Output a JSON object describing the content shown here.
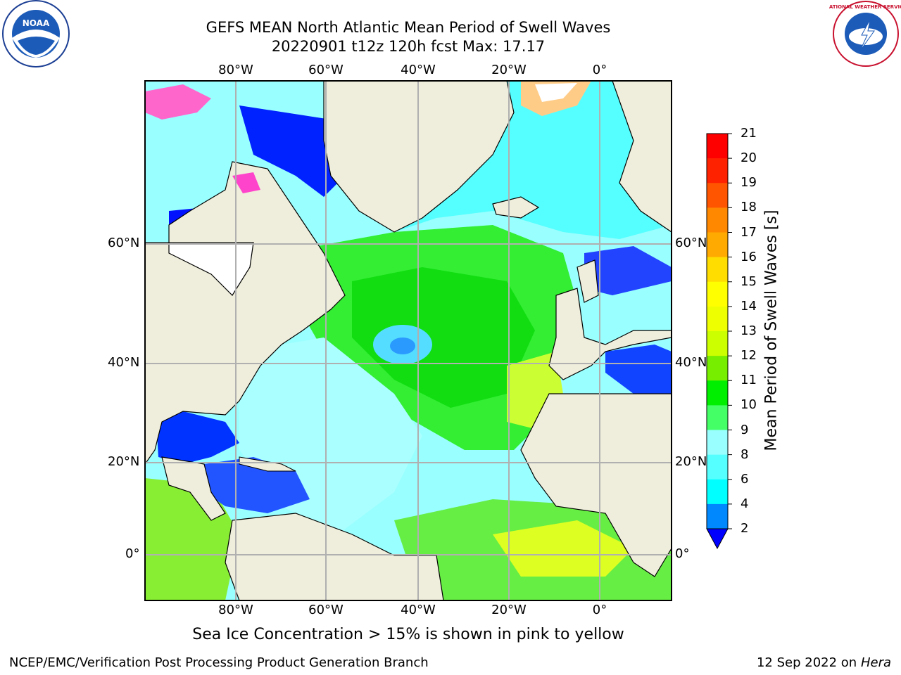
{
  "header": {
    "title_line1": "GEFS MEAN North Atlantic Mean Period of Swell Waves",
    "title_line2": "20220901 t12z 120h fcst   Max: 17.17"
  },
  "map": {
    "lon_labels": [
      "80°W",
      "60°W",
      "40°W",
      "20°W",
      "0°"
    ],
    "lat_labels_left": [
      "60°N",
      "40°N",
      "20°N",
      "0°"
    ],
    "lat_labels_right": [
      "60°N",
      "40°N",
      "20°N",
      "0°"
    ],
    "colors": {
      "ocean_cyan": "#99ffff",
      "ocean_light": "#33ffff",
      "ocean_green": "#4dff77",
      "ocean_bright_green": "#11ee11",
      "ocean_blue": "#0000ff",
      "land": "#efeedc",
      "ice_pink": "#ff66cc",
      "grid": "#b0b0b0"
    }
  },
  "colorbar": {
    "title": "Mean Period of Swell Waves [s]",
    "ticks": [
      "21",
      "20",
      "19",
      "18",
      "17",
      "16",
      "15",
      "14",
      "13",
      "12",
      "11",
      "10",
      "9",
      "8",
      "6",
      "4",
      "2"
    ],
    "colors": [
      "#ff0000",
      "#ff2200",
      "#ff5500",
      "#ff8800",
      "#ffaa00",
      "#ffdd00",
      "#ffff00",
      "#eeff00",
      "#ccff00",
      "#77ee00",
      "#00ee00",
      "#44ff66",
      "#99ffff",
      "#55ffff",
      "#00ffff",
      "#0088ff",
      "#0000ff"
    ]
  },
  "note": "Sea Ice Concentration > 15% is shown in pink to yellow",
  "footer": {
    "left": "NCEP/EMC/Verification Post Processing Product Generation Branch",
    "right_prefix": "12 Sep 2022 on",
    "right_host": "Hera"
  },
  "logos": {
    "noaa_text": "NOAA",
    "nws_text": "NATIONAL WEATHER SERVICE"
  }
}
